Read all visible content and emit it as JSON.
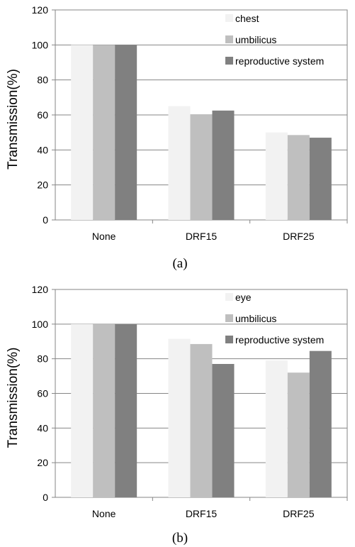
{
  "chart_data": [
    {
      "type": "bar",
      "caption": "(a)",
      "categories": [
        "None",
        "DRF15",
        "DRF25"
      ],
      "series": [
        {
          "name": "chest",
          "values": [
            100,
            65,
            50
          ],
          "color": "#f2f2f2"
        },
        {
          "name": "umbilicus",
          "values": [
            100,
            60,
            48.5
          ],
          "color": "#bfbfbf"
        },
        {
          "name": "reproductive system",
          "values": [
            100,
            62.5,
            47
          ],
          "color": "#808080"
        }
      ],
      "xlabel": "",
      "ylabel": "Transmission(%)",
      "ylim": [
        0,
        120
      ],
      "yticks": [
        "0",
        "20",
        "40",
        "60",
        "80",
        "100",
        "120"
      ],
      "grid": true,
      "legend": "top-right"
    },
    {
      "type": "bar",
      "caption": "(b)",
      "categories": [
        "None",
        "DRF15",
        "DRF25"
      ],
      "series": [
        {
          "name": "eye",
          "values": [
            100,
            91.5,
            79
          ],
          "color": "#f2f2f2"
        },
        {
          "name": "umbilicus",
          "values": [
            100,
            88.5,
            72
          ],
          "color": "#bfbfbf"
        },
        {
          "name": "reproductive system",
          "values": [
            100,
            77,
            84.5
          ],
          "color": "#808080"
        }
      ],
      "xlabel": "",
      "ylabel": "Transmission(%)",
      "ylim": [
        0,
        120
      ],
      "yticks": [
        "0",
        "20",
        "40",
        "60",
        "80",
        "100",
        "120"
      ],
      "grid": true,
      "legend": "top-right"
    }
  ]
}
